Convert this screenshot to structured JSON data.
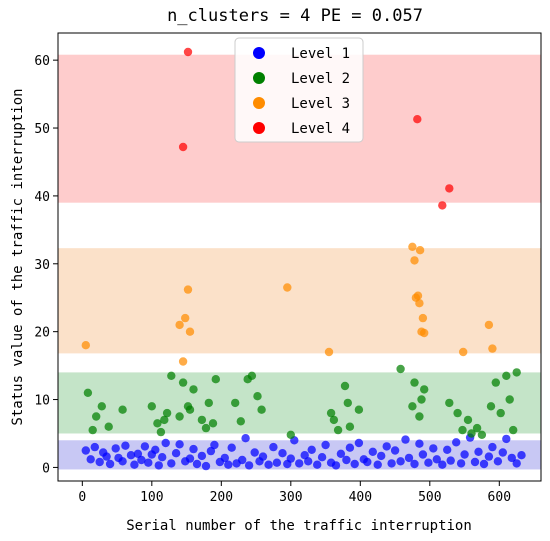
{
  "chart_data": {
    "type": "scatter",
    "title": "n_clusters = 4  PE = 0.057",
    "xlabel": "Serial number of the traffic interruption",
    "ylabel": "Status value of the traffic interruption",
    "xlim": [
      -35,
      660
    ],
    "ylim": [
      -2,
      64
    ],
    "x_ticks": [
      0,
      100,
      200,
      300,
      400,
      500,
      600
    ],
    "y_ticks": [
      0,
      10,
      20,
      30,
      40,
      50,
      60
    ],
    "grid": false,
    "legend_position": "top-center",
    "bands": [
      {
        "level": "Level 1",
        "y0": -0.3,
        "y1": 4.0,
        "color": "#c8c8f4"
      },
      {
        "level": "Level 2",
        "y0": 5.0,
        "y1": 14.0,
        "color": "#c4e4c8"
      },
      {
        "level": "Level 3",
        "y0": 16.8,
        "y1": 32.3,
        "color": "#fbe1c9"
      },
      {
        "level": "Level 4",
        "y0": 39.0,
        "y1": 60.8,
        "color": "#fecccc"
      }
    ],
    "series": [
      {
        "name": "Level 1",
        "color": "#0000ff",
        "x": [
          5,
          12,
          18,
          25,
          30,
          35,
          40,
          48,
          52,
          58,
          62,
          70,
          75,
          80,
          85,
          90,
          95,
          100,
          105,
          110,
          115,
          120,
          128,
          135,
          140,
          148,
          155,
          160,
          165,
          172,
          178,
          185,
          190,
          198,
          205,
          210,
          215,
          222,
          230,
          235,
          240,
          248,
          255,
          260,
          268,
          275,
          280,
          288,
          295,
          300,
          305,
          312,
          320,
          325,
          330,
          338,
          345,
          350,
          358,
          365,
          372,
          380,
          385,
          392,
          398,
          405,
          410,
          418,
          425,
          430,
          438,
          445,
          450,
          458,
          465,
          470,
          478,
          485,
          490,
          498,
          505,
          510,
          518,
          525,
          530,
          538,
          545,
          550,
          558,
          565,
          570,
          578,
          585,
          590,
          598,
          605,
          610,
          618,
          625,
          632
        ],
        "y": [
          2.5,
          1.2,
          3.0,
          0.8,
          2.2,
          1.6,
          0.5,
          2.8,
          1.4,
          0.9,
          3.2,
          1.8,
          0.4,
          2.0,
          1.1,
          3.1,
          0.7,
          1.9,
          2.6,
          0.3,
          1.5,
          3.6,
          0.6,
          2.1,
          3.4,
          0.9,
          1.3,
          2.7,
          0.5,
          1.7,
          0.2,
          2.4,
          3.3,
          0.8,
          1.4,
          0.4,
          2.9,
          0.6,
          1.1,
          4.3,
          0.3,
          2.2,
          0.9,
          1.6,
          0.4,
          3.0,
          0.7,
          2.1,
          0.5,
          1.3,
          4.0,
          0.6,
          1.8,
          0.9,
          2.6,
          0.4,
          1.5,
          3.3,
          0.7,
          0.3,
          2.0,
          1.1,
          2.9,
          0.5,
          3.6,
          1.2,
          0.8,
          2.3,
          0.4,
          1.7,
          3.1,
          0.6,
          2.5,
          0.9,
          4.1,
          1.4,
          0.5,
          3.5,
          1.9,
          0.7,
          2.8,
          1.2,
          0.4,
          2.6,
          1.0,
          3.7,
          0.6,
          1.9,
          4.4,
          0.8,
          2.3,
          0.5,
          1.6,
          3.0,
          0.9,
          2.2,
          4.2,
          1.4,
          0.6,
          1.8
        ]
      },
      {
        "name": "Level 2",
        "color": "#008000",
        "x": [
          8,
          15,
          20,
          28,
          38,
          58,
          100,
          108,
          113,
          118,
          122,
          128,
          140,
          145,
          152,
          155,
          160,
          172,
          178,
          182,
          188,
          192,
          220,
          228,
          238,
          244,
          252,
          258,
          300,
          358,
          362,
          368,
          378,
          382,
          385,
          398,
          458,
          475,
          478,
          485,
          488,
          492,
          528,
          540,
          547,
          555,
          560,
          568,
          575,
          588,
          595,
          602,
          610,
          615,
          620,
          625
        ],
        "y": [
          11.0,
          5.5,
          7.5,
          9.0,
          6.0,
          8.5,
          9.0,
          6.5,
          5.2,
          7.0,
          8.0,
          13.5,
          7.5,
          12.5,
          9.0,
          8.5,
          11.5,
          7.0,
          5.8,
          9.5,
          6.5,
          13.0,
          9.5,
          6.8,
          13.0,
          13.5,
          10.5,
          8.5,
          4.8,
          8.0,
          7.0,
          5.5,
          12.0,
          9.5,
          6.0,
          8.5,
          14.5,
          9.0,
          12.5,
          7.5,
          10.0,
          11.5,
          9.5,
          8.0,
          5.5,
          7.0,
          5.0,
          5.8,
          4.8,
          9.0,
          12.5,
          8.0,
          13.5,
          10.0,
          5.5,
          14.0
        ]
      },
      {
        "name": "Level 3",
        "color": "#ff8c00",
        "x": [
          5,
          140,
          145,
          148,
          152,
          155,
          295,
          355,
          475,
          478,
          480,
          485,
          488,
          490,
          492,
          548,
          585,
          590
        ],
        "y": [
          18.0,
          21.0,
          15.6,
          22.0,
          26.2,
          20.0,
          26.5,
          17.0,
          32.5,
          30.5,
          25.0,
          24.2,
          20.0,
          22.0,
          19.8,
          17.0,
          21.0,
          17.5
        ],
        "extra_points": [
          [
            486,
            32.0
          ],
          [
            483,
            25.3
          ]
        ]
      },
      {
        "name": "Level 4",
        "color": "#ff0000",
        "x": [
          145,
          152,
          482,
          518,
          528
        ],
        "y": [
          47.2,
          61.2,
          51.3,
          38.6,
          41.1
        ]
      }
    ]
  }
}
